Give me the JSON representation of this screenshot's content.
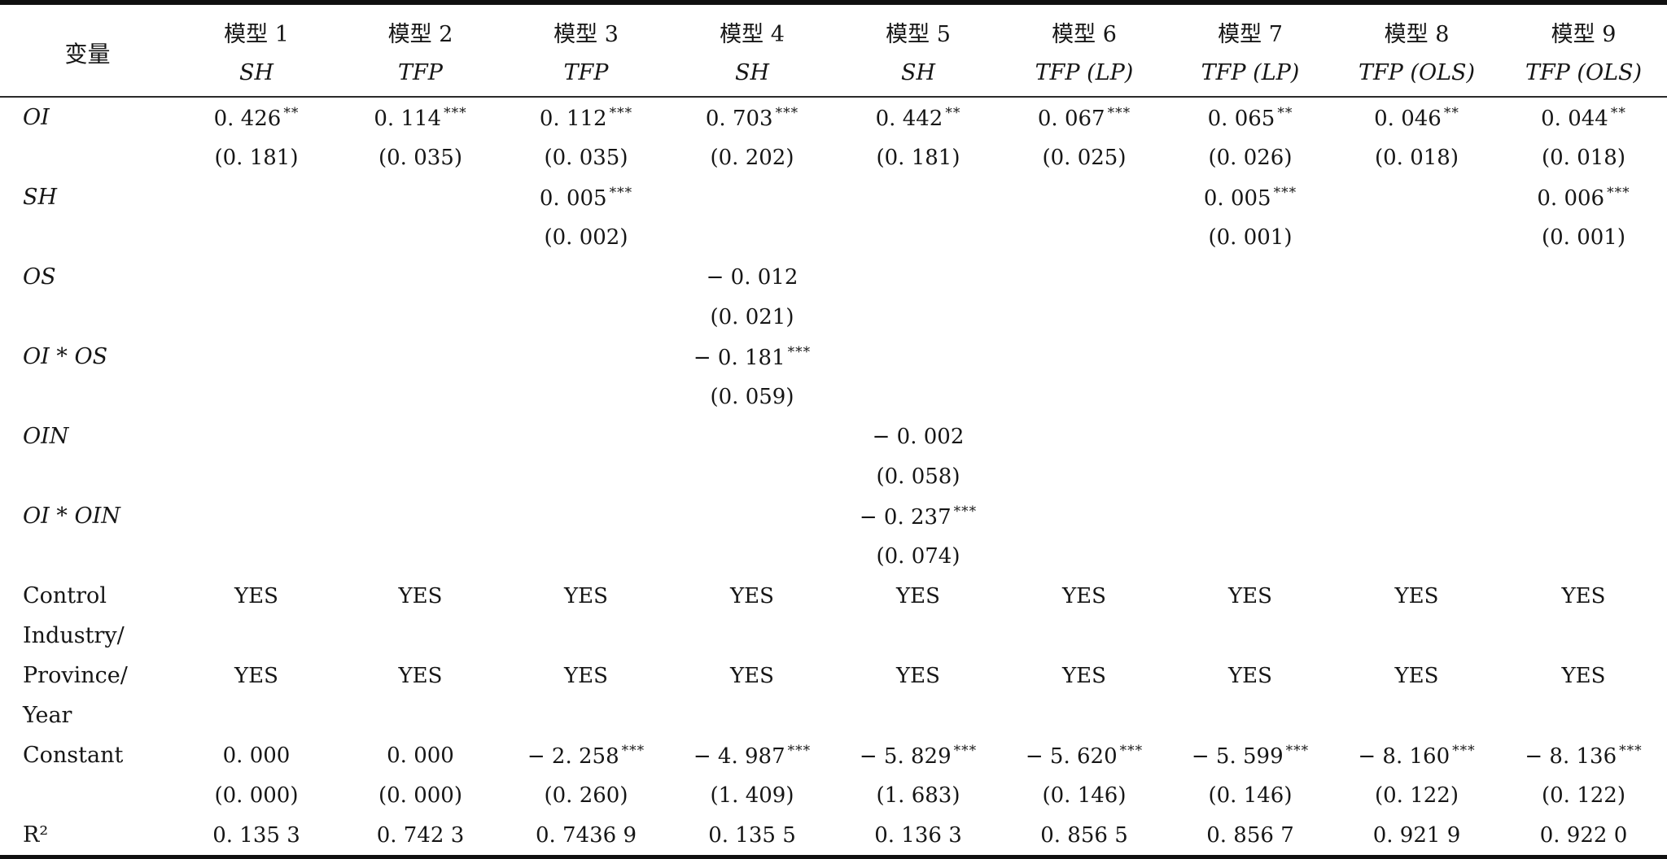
{
  "header": {
    "variable": "变量",
    "models": [
      "模型 1",
      "模型 2",
      "模型 3",
      "模型 4",
      "模型 5",
      "模型 6",
      "模型 7",
      "模型 8",
      "模型 9"
    ],
    "dependents": [
      "SH",
      "TFP",
      "TFP",
      "SH",
      "SH",
      "TFP (LP)",
      "TFP (LP)",
      "TFP (OLS)",
      "TFP (OLS)"
    ]
  },
  "rows": [
    {
      "label": "OI",
      "italic": true,
      "cells": [
        [
          "0. 426",
          "**"
        ],
        [
          "0. 114",
          "***"
        ],
        [
          "0. 112",
          "***"
        ],
        [
          "0. 703",
          "***"
        ],
        [
          "0. 442",
          "**"
        ],
        [
          "0. 067",
          "***"
        ],
        [
          "0. 065",
          "**"
        ],
        [
          "0. 046",
          "**"
        ],
        [
          "0. 044",
          "**"
        ]
      ]
    },
    {
      "label": "",
      "italic": false,
      "cells": [
        [
          "(0. 181)",
          ""
        ],
        [
          "(0. 035)",
          ""
        ],
        [
          "(0. 035)",
          ""
        ],
        [
          "(0. 202)",
          ""
        ],
        [
          "(0. 181)",
          ""
        ],
        [
          "(0. 025)",
          ""
        ],
        [
          "(0. 026)",
          ""
        ],
        [
          "(0. 018)",
          ""
        ],
        [
          "(0. 018)",
          ""
        ]
      ]
    },
    {
      "label": "SH",
      "italic": true,
      "cells": [
        null,
        null,
        [
          "0. 005",
          "***"
        ],
        null,
        null,
        null,
        [
          "0. 005",
          "***"
        ],
        null,
        [
          "0. 006",
          "***"
        ]
      ]
    },
    {
      "label": "",
      "italic": false,
      "cells": [
        null,
        null,
        [
          "(0. 002)",
          ""
        ],
        null,
        null,
        null,
        [
          "(0. 001)",
          ""
        ],
        null,
        [
          "(0. 001)",
          ""
        ]
      ]
    },
    {
      "label": "OS",
      "italic": true,
      "cells": [
        null,
        null,
        null,
        [
          "− 0. 012",
          ""
        ],
        null,
        null,
        null,
        null,
        null
      ]
    },
    {
      "label": "",
      "italic": false,
      "cells": [
        null,
        null,
        null,
        [
          "(0. 021)",
          ""
        ],
        null,
        null,
        null,
        null,
        null
      ]
    },
    {
      "label": "OI * OS",
      "italic": true,
      "cells": [
        null,
        null,
        null,
        [
          "− 0. 181",
          "***"
        ],
        null,
        null,
        null,
        null,
        null
      ]
    },
    {
      "label": "",
      "italic": false,
      "cells": [
        null,
        null,
        null,
        [
          "(0. 059)",
          ""
        ],
        null,
        null,
        null,
        null,
        null
      ]
    },
    {
      "label": "OIN",
      "italic": true,
      "cells": [
        null,
        null,
        null,
        null,
        [
          "− 0. 002",
          ""
        ],
        null,
        null,
        null,
        null
      ]
    },
    {
      "label": "",
      "italic": false,
      "cells": [
        null,
        null,
        null,
        null,
        [
          "(0. 058)",
          ""
        ],
        null,
        null,
        null,
        null
      ]
    },
    {
      "label": "OI * OIN",
      "italic": true,
      "cells": [
        null,
        null,
        null,
        null,
        [
          "− 0. 237",
          "***"
        ],
        null,
        null,
        null,
        null
      ]
    },
    {
      "label": "",
      "italic": false,
      "cells": [
        null,
        null,
        null,
        null,
        [
          "(0. 074)",
          ""
        ],
        null,
        null,
        null,
        null
      ]
    },
    {
      "label": "Control",
      "italic": false,
      "cells": [
        [
          "YES",
          ""
        ],
        [
          "YES",
          ""
        ],
        [
          "YES",
          ""
        ],
        [
          "YES",
          ""
        ],
        [
          "YES",
          ""
        ],
        [
          "YES",
          ""
        ],
        [
          "YES",
          ""
        ],
        [
          "YES",
          ""
        ],
        [
          "YES",
          ""
        ]
      ]
    },
    {
      "label": "Industry/",
      "italic": false,
      "cells": [
        null,
        null,
        null,
        null,
        null,
        null,
        null,
        null,
        null
      ]
    },
    {
      "label": "Province/",
      "italic": false,
      "cells": [
        [
          "YES",
          ""
        ],
        [
          "YES",
          ""
        ],
        [
          "YES",
          ""
        ],
        [
          "YES",
          ""
        ],
        [
          "YES",
          ""
        ],
        [
          "YES",
          ""
        ],
        [
          "YES",
          ""
        ],
        [
          "YES",
          ""
        ],
        [
          "YES",
          ""
        ]
      ]
    },
    {
      "label": "Year",
      "italic": false,
      "cells": [
        null,
        null,
        null,
        null,
        null,
        null,
        null,
        null,
        null
      ]
    },
    {
      "label": "Constant",
      "italic": false,
      "cells": [
        [
          "0. 000",
          ""
        ],
        [
          "0. 000",
          ""
        ],
        [
          "− 2. 258",
          "***"
        ],
        [
          "− 4. 987",
          "***"
        ],
        [
          "− 5. 829",
          "***"
        ],
        [
          "− 5. 620",
          "***"
        ],
        [
          "− 5. 599",
          "***"
        ],
        [
          "− 8. 160",
          "***"
        ],
        [
          "− 8. 136",
          "***"
        ]
      ]
    },
    {
      "label": "",
      "italic": false,
      "cells": [
        [
          "(0. 000)",
          ""
        ],
        [
          "(0. 000)",
          ""
        ],
        [
          "(0. 260)",
          ""
        ],
        [
          "(1. 409)",
          ""
        ],
        [
          "(1. 683)",
          ""
        ],
        [
          "(0. 146)",
          ""
        ],
        [
          "(0. 146)",
          ""
        ],
        [
          "(0. 122)",
          ""
        ],
        [
          "(0. 122)",
          ""
        ]
      ]
    },
    {
      "label": "R²",
      "italic": false,
      "cells": [
        [
          "0. 135 3",
          ""
        ],
        [
          "0. 742 3",
          ""
        ],
        [
          "0. 7436 9",
          ""
        ],
        [
          "0. 135 5",
          ""
        ],
        [
          "0. 136 3",
          ""
        ],
        [
          "0. 856 5",
          ""
        ],
        [
          "0. 856 7",
          ""
        ],
        [
          "0. 921 9",
          ""
        ],
        [
          "0. 922 0",
          ""
        ]
      ]
    }
  ]
}
